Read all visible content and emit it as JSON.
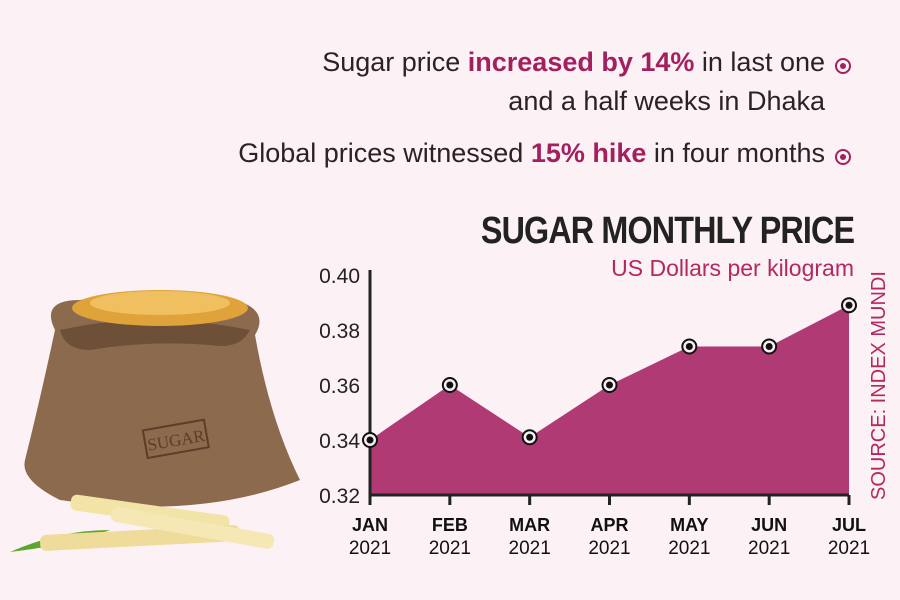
{
  "headline": {
    "line1_pre": "Sugar price ",
    "line1_bold": "increased by 14%",
    "line1_post": " in last one",
    "line2": "and a half weeks in Dhaka",
    "line3_pre": "Global prices witnessed ",
    "line3_bold": "15% hike",
    "line3_post": " in four months"
  },
  "sack_label": "SUGAR",
  "colors": {
    "accent": "#a3205f",
    "area": "#b03a74",
    "background": "#fcf1f4"
  },
  "chart_data": {
    "type": "area",
    "title": "SUGAR MONTHLY PRICE",
    "ylabel": "US Dollars per kilogram",
    "source": "SOURCE: INDEX MUNDI",
    "categories": [
      "JAN",
      "FEB",
      "MAR",
      "APR",
      "MAY",
      "JUN",
      "JUL"
    ],
    "years": [
      "2021",
      "2021",
      "2021",
      "2021",
      "2021",
      "2021",
      "2021"
    ],
    "values": [
      0.34,
      0.36,
      0.341,
      0.36,
      0.374,
      0.374,
      0.389
    ],
    "ylim": [
      0.32,
      0.4
    ],
    "yticks": [
      "0.32",
      "0.34",
      "0.36",
      "0.38",
      "0.40"
    ],
    "grid": false
  }
}
